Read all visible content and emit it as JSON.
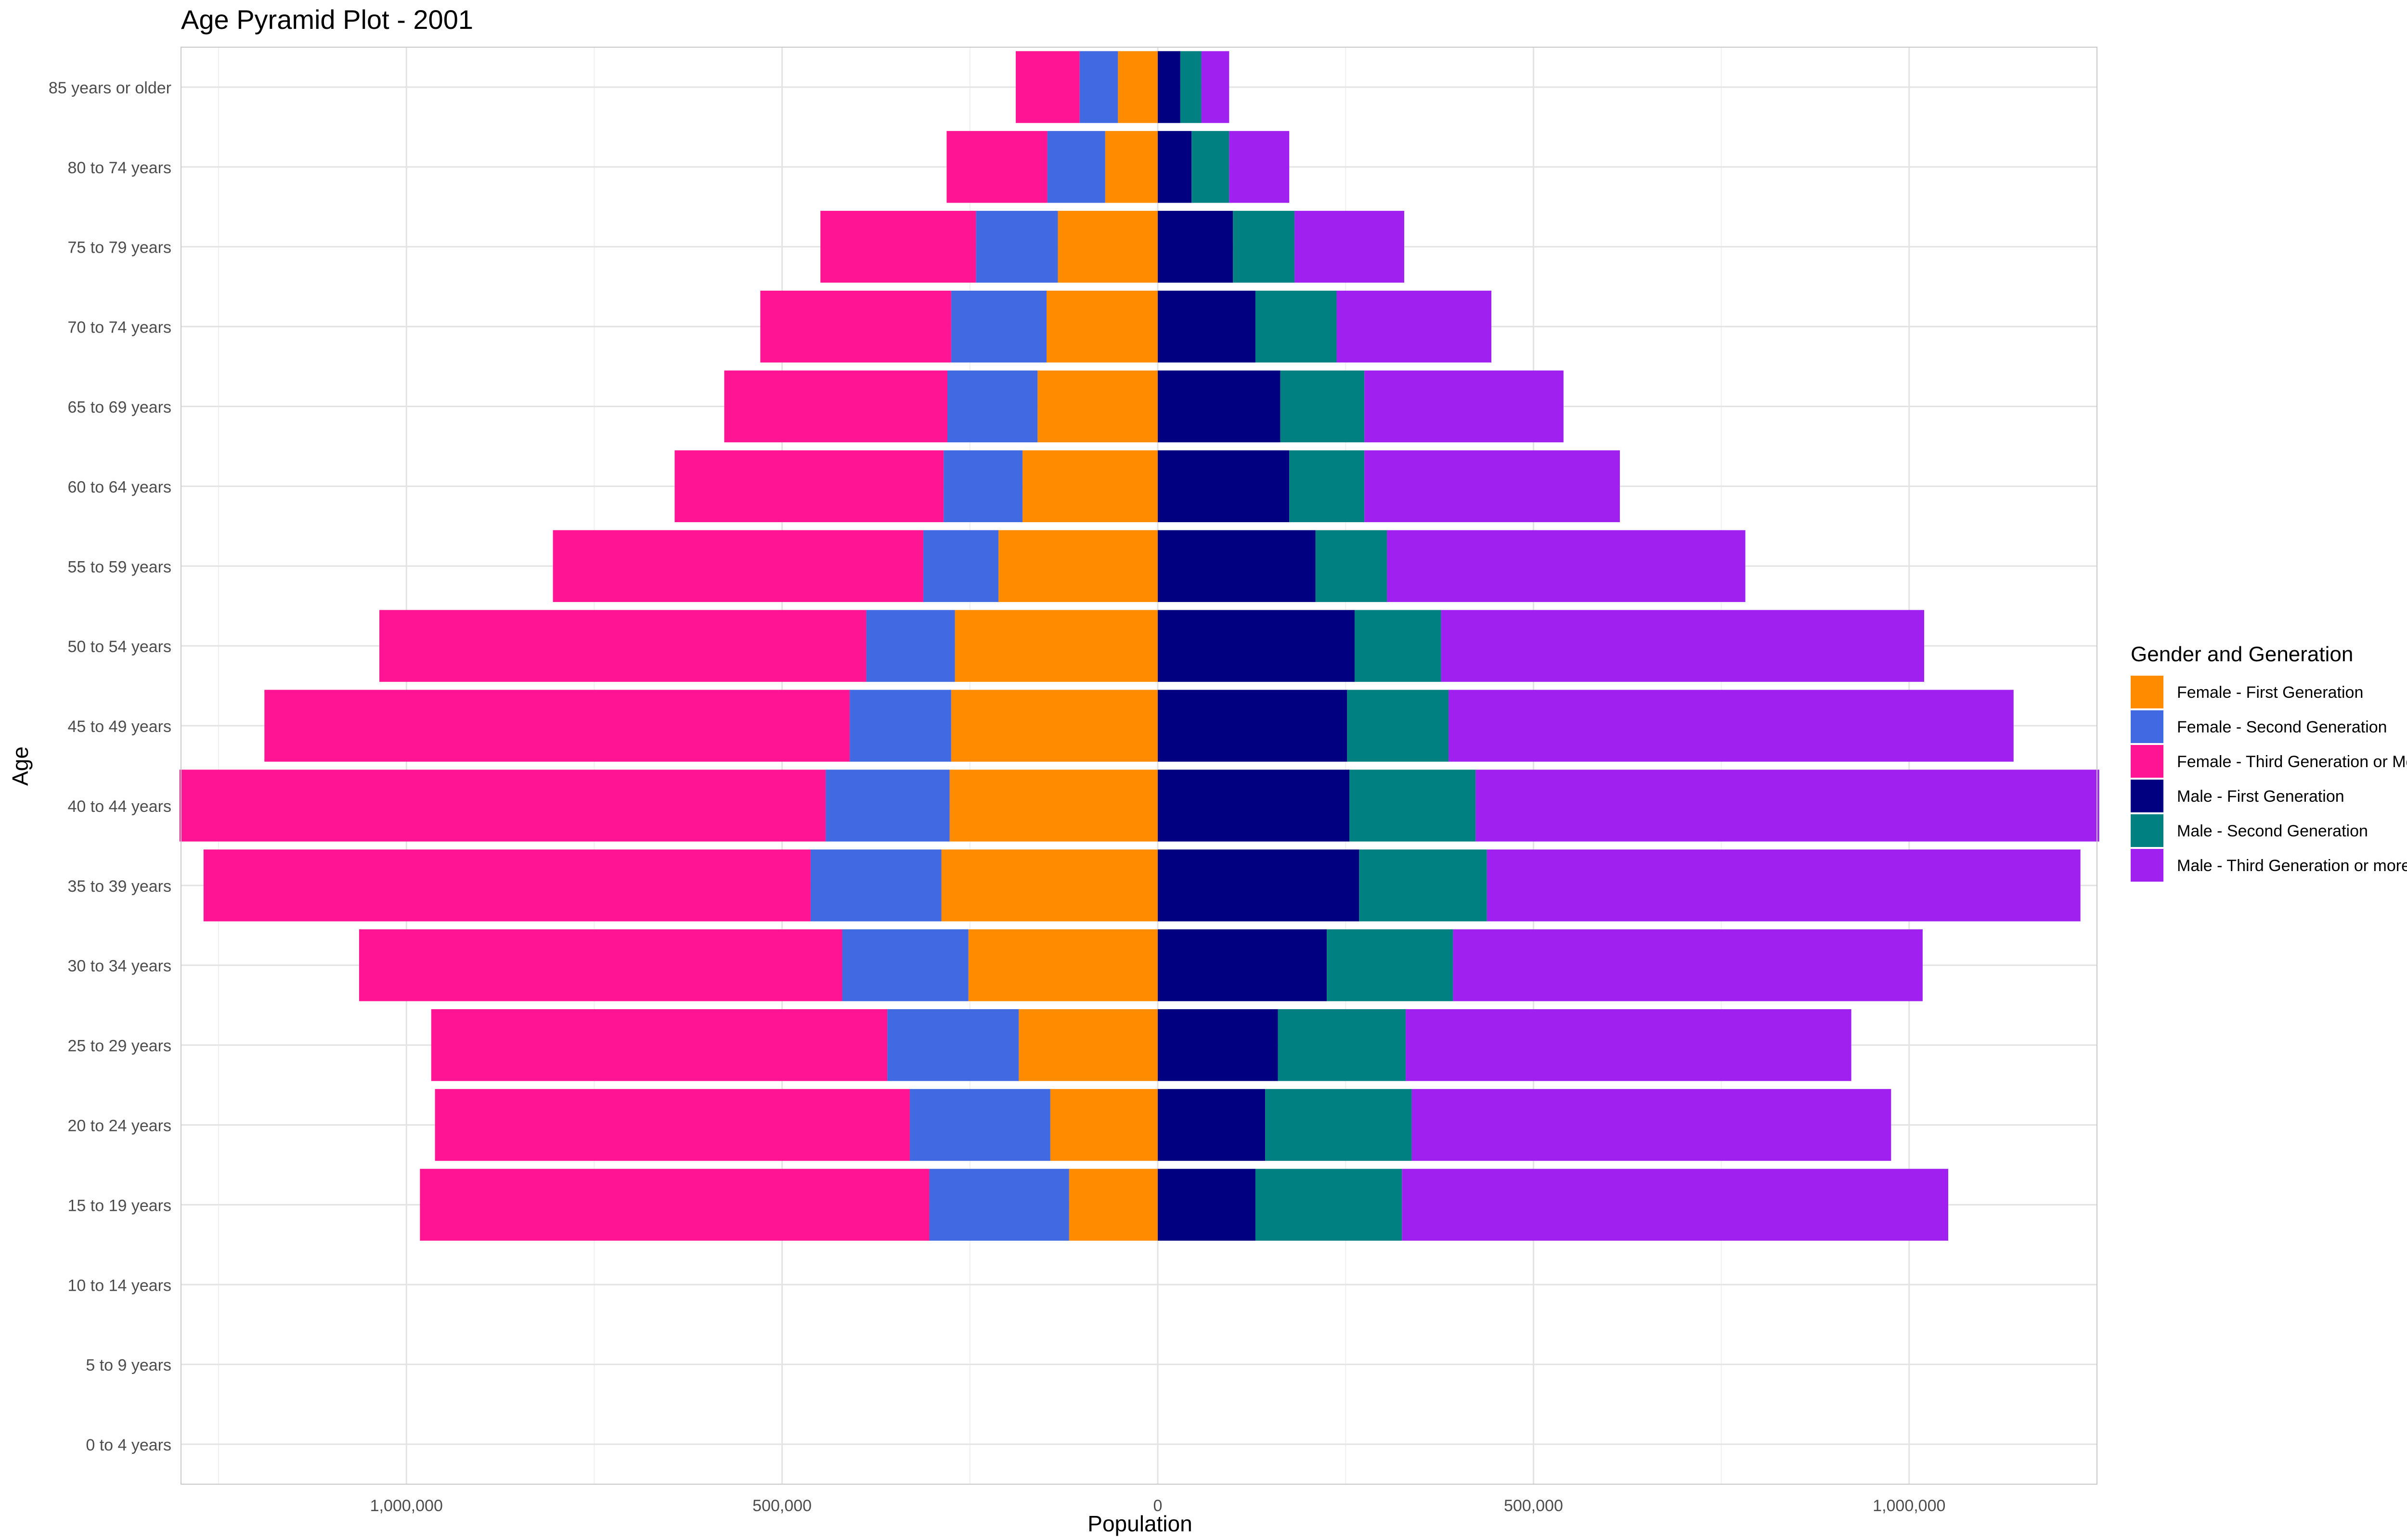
{
  "chart_data": {
    "type": "bar",
    "orientation": "horizontal",
    "layout": "population-pyramid",
    "title": "Age Pyramid Plot - 2001",
    "xlabel": "Population",
    "ylabel": "Age",
    "xlim": [
      -1300000,
      1250000
    ],
    "x_ticks": [
      -1000000,
      -500000,
      0,
      500000,
      1000000
    ],
    "x_tick_labels": [
      "1,000,000",
      "500,000",
      "0",
      "500,000",
      "1,000,000"
    ],
    "grid": true,
    "legend_position": "right",
    "legend_title": "Gender and Generation",
    "categories": [
      "0 to 4 years",
      "5 to 9 years",
      "10 to 14 years",
      "15 to 19 years",
      "20 to 24 years",
      "25 to 29 years",
      "30 to 34 years",
      "35 to 39 years",
      "40 to 44 years",
      "45 to 49 years",
      "50 to 54 years",
      "55 to 59 years",
      "60 to 64 years",
      "65 to 69 years",
      "70 to 74 years",
      "75 to 79 years",
      "80 to 74 years",
      "85 years or older"
    ],
    "series": [
      {
        "name": "Female - First Generation",
        "side": "left",
        "color": "#ff8c00",
        "values": [
          0,
          0,
          0,
          118000,
          143000,
          185000,
          252000,
          288000,
          277000,
          275000,
          270000,
          212000,
          180000,
          160000,
          148000,
          133000,
          70000,
          53000
        ]
      },
      {
        "name": "Female - Second Generation",
        "side": "left",
        "color": "#4169e1",
        "values": [
          0,
          0,
          0,
          186000,
          187000,
          175000,
          168000,
          174000,
          165000,
          135000,
          118000,
          100000,
          105000,
          120000,
          127000,
          109000,
          77000,
          51000
        ]
      },
      {
        "name": "Female - Third Generation or More",
        "side": "left",
        "color": "#ff1493",
        "values": [
          0,
          0,
          0,
          678000,
          632000,
          607000,
          643000,
          808000,
          860000,
          779000,
          648000,
          493000,
          358000,
          297000,
          254000,
          207000,
          134000,
          85000
        ]
      },
      {
        "name": "Male - First Generation",
        "side": "right",
        "color": "#000080",
        "values": [
          0,
          0,
          0,
          130000,
          143000,
          160000,
          225000,
          268000,
          255000,
          252000,
          262000,
          210000,
          175000,
          163000,
          130000,
          100000,
          45000,
          30000
        ]
      },
      {
        "name": "Male - Second Generation",
        "side": "right",
        "color": "#008080",
        "values": [
          0,
          0,
          0,
          195000,
          195000,
          170000,
          168000,
          170000,
          168000,
          135000,
          115000,
          95000,
          100000,
          112000,
          108000,
          82000,
          50000,
          28000
        ]
      },
      {
        "name": "Male - Third Generation or more",
        "side": "right",
        "color": "#a020f0",
        "values": [
          0,
          0,
          0,
          727000,
          638000,
          593000,
          625000,
          790000,
          830000,
          752000,
          643000,
          477000,
          340000,
          265000,
          206000,
          146000,
          80000,
          37000
        ]
      }
    ]
  }
}
